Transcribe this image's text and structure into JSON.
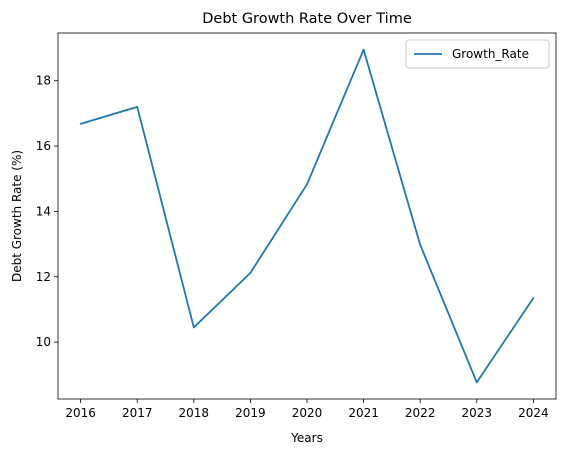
{
  "chart_data": {
    "type": "line",
    "title": "Debt Growth Rate Over Time",
    "xlabel": "Years",
    "ylabel": "Debt Growth Rate (%)",
    "x": [
      2016,
      2017,
      2018,
      2019,
      2020,
      2021,
      2022,
      2023,
      2024
    ],
    "series": [
      {
        "name": "Growth_Rate",
        "color": "#1f77b4",
        "values": [
          16.68,
          17.2,
          10.45,
          12.12,
          14.83,
          18.95,
          12.98,
          8.77,
          11.35
        ]
      }
    ],
    "xlim": [
      2015.6,
      2024.4
    ],
    "ylim": [
      8.26,
      19.46
    ],
    "xticks": [
      "2016",
      "2017",
      "2018",
      "2019",
      "2020",
      "2021",
      "2022",
      "2023",
      "2024"
    ],
    "yticks": [
      "10",
      "12",
      "14",
      "16",
      "18"
    ],
    "grid": false,
    "legend": "top-right"
  }
}
